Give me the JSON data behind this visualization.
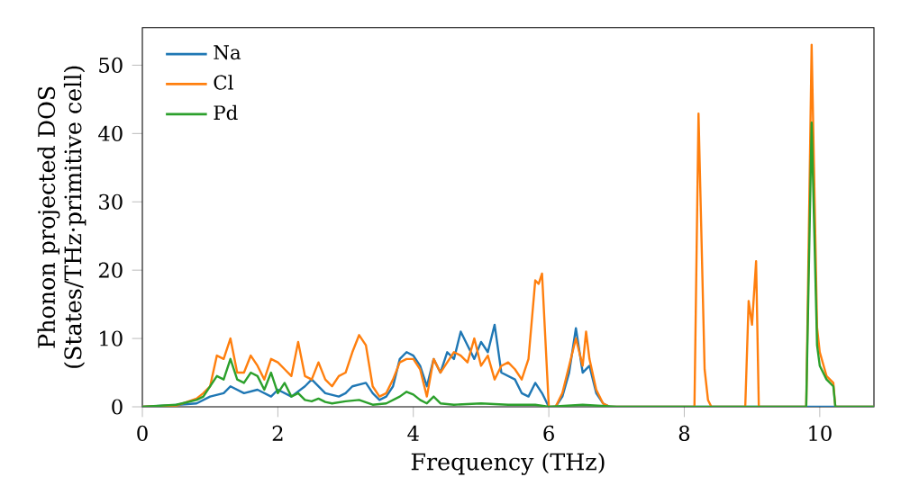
{
  "chart_data": {
    "type": "line",
    "xlabel": "Frequency (THz)",
    "ylabel": "Phonon projected DOS\n(States/THz·primitive cell)",
    "xlim": [
      0,
      10.8
    ],
    "ylim": [
      0,
      55.5
    ],
    "xticks": [
      0,
      2,
      4,
      6,
      8,
      10
    ],
    "yticks": [
      0,
      10,
      20,
      30,
      40,
      50
    ],
    "legend": "top left",
    "grid": false,
    "marker": "none",
    "line_style": "solid",
    "series": [
      {
        "name": "Na",
        "color": "#1f77b4",
        "x": [
          0,
          0.4,
          0.8,
          1.0,
          1.2,
          1.3,
          1.5,
          1.7,
          1.9,
          2.0,
          2.2,
          2.4,
          2.5,
          2.7,
          2.9,
          3.0,
          3.1,
          3.3,
          3.4,
          3.5,
          3.6,
          3.7,
          3.8,
          3.9,
          4.0,
          4.1,
          4.2,
          4.3,
          4.4,
          4.5,
          4.6,
          4.7,
          4.8,
          4.9,
          5.0,
          5.1,
          5.2,
          5.3,
          5.4,
          5.5,
          5.6,
          5.7,
          5.8,
          5.9,
          6.0,
          6.1,
          6.2,
          6.3,
          6.4,
          6.5,
          6.6,
          6.7,
          6.8,
          6.9,
          10.8
        ],
        "values": [
          0,
          0.2,
          0.5,
          1.5,
          2,
          3,
          2,
          2.5,
          1.5,
          2.5,
          1.5,
          3,
          4,
          2,
          1.5,
          2,
          3,
          3.5,
          2,
          1,
          1.5,
          3,
          7,
          8,
          7.5,
          6,
          3,
          7,
          5,
          8,
          7,
          11,
          9,
          7,
          9.5,
          8,
          12,
          5,
          4.5,
          4,
          2,
          1.5,
          3.5,
          2,
          0,
          0,
          1.5,
          5,
          11.5,
          5,
          6,
          2,
          0.5,
          0,
          0
        ]
      },
      {
        "name": "Cl",
        "color": "#ff7f0e",
        "x": [
          0,
          0.5,
          0.6,
          0.8,
          0.9,
          1.0,
          1.1,
          1.2,
          1.3,
          1.4,
          1.5,
          1.6,
          1.7,
          1.8,
          1.9,
          2.0,
          2.1,
          2.2,
          2.3,
          2.4,
          2.5,
          2.6,
          2.7,
          2.8,
          2.9,
          3.0,
          3.1,
          3.2,
          3.3,
          3.4,
          3.5,
          3.6,
          3.7,
          3.8,
          3.9,
          4.0,
          4.1,
          4.2,
          4.3,
          4.4,
          4.5,
          4.6,
          4.7,
          4.8,
          4.9,
          5.0,
          5.1,
          5.2,
          5.3,
          5.4,
          5.5,
          5.6,
          5.7,
          5.8,
          5.85,
          5.9,
          6.0,
          6.1,
          6.2,
          6.3,
          6.4,
          6.5,
          6.55,
          6.6,
          6.7,
          6.8,
          6.9,
          8.15,
          8.21,
          8.3,
          8.35,
          8.4,
          8.9,
          8.95,
          9.0,
          9.06,
          9.1,
          9.8,
          9.88,
          9.96,
          10.0,
          10.1,
          10.2,
          10.23,
          10.8
        ],
        "values": [
          0,
          0.2,
          0.5,
          1.2,
          2,
          3,
          7.5,
          7,
          10,
          5,
          5,
          7.5,
          6,
          4,
          7,
          6.5,
          5.5,
          4.5,
          9.5,
          4.5,
          4,
          6.5,
          4,
          3,
          4.5,
          5,
          8,
          10.5,
          9,
          3,
          1.5,
          2,
          4,
          6.5,
          7,
          7,
          5.5,
          1.5,
          7,
          5,
          6.5,
          8,
          7.5,
          6.5,
          10,
          6,
          7.5,
          4,
          6,
          6.5,
          5.5,
          4,
          7,
          18.5,
          18,
          19.5,
          0,
          0,
          2,
          6,
          10,
          6,
          11,
          7,
          2.5,
          0.5,
          0,
          0,
          42.9,
          5.5,
          1,
          0,
          0,
          15.5,
          12,
          21.3,
          0,
          0,
          53,
          11.6,
          8,
          4.5,
          3.5,
          0,
          0
        ]
      },
      {
        "name": "Pd",
        "color": "#2ca02c",
        "x": [
          0,
          0.5,
          0.8,
          0.9,
          1.0,
          1.1,
          1.2,
          1.3,
          1.4,
          1.5,
          1.6,
          1.7,
          1.8,
          1.9,
          2.0,
          2.1,
          2.2,
          2.3,
          2.4,
          2.5,
          2.6,
          2.7,
          2.8,
          3.0,
          3.2,
          3.4,
          3.6,
          3.8,
          3.9,
          4.0,
          4.1,
          4.2,
          4.3,
          4.4,
          4.6,
          5.0,
          5.4,
          5.8,
          6.0,
          6.5,
          7.0,
          9.8,
          9.88,
          9.96,
          10.0,
          10.1,
          10.2,
          10.23,
          10.8
        ],
        "values": [
          0,
          0.3,
          1,
          1.5,
          3,
          4.5,
          4,
          7,
          4,
          3.5,
          5,
          4.5,
          2.5,
          5,
          2,
          3.5,
          1.5,
          2,
          1,
          0.8,
          1.2,
          0.7,
          0.5,
          0.8,
          1,
          0.3,
          0.5,
          1.5,
          2.2,
          1.8,
          1,
          0.5,
          1.5,
          0.5,
          0.3,
          0.5,
          0.3,
          0.3,
          0,
          0.3,
          0,
          0,
          41.6,
          9,
          6,
          4,
          3,
          0,
          0
        ]
      }
    ]
  }
}
